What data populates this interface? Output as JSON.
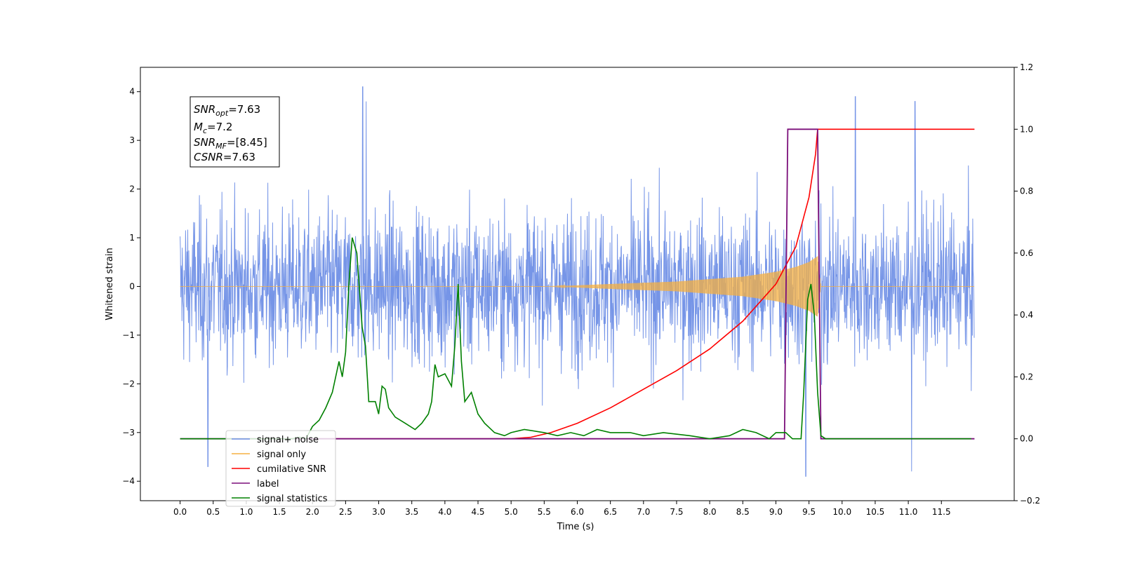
{
  "chart_data": {
    "type": "line",
    "title": "",
    "xlabel": "Time (s)",
    "ylabel": "Whitened strain",
    "ylabel_right": "",
    "xlim": [
      -0.6,
      12.6
    ],
    "ylim": [
      -4.4,
      4.5
    ],
    "ylim_right": [
      -0.2,
      1.2
    ],
    "x_ticks": [
      "0.0",
      "0.5",
      "1.0",
      "1.5",
      "2.0",
      "2.5",
      "3.0",
      "3.5",
      "4.0",
      "4.5",
      "5.0",
      "5.5",
      "6.0",
      "6.5",
      "7.0",
      "7.5",
      "8.0",
      "8.5",
      "9.0",
      "9.5",
      "10.0",
      "10.5",
      "11.0",
      "11.5"
    ],
    "y_ticks": [
      "−4",
      "−3",
      "−2",
      "−1",
      "0",
      "1",
      "2",
      "3",
      "4"
    ],
    "y_ticks_right": [
      "−0.2",
      "0.0",
      "0.2",
      "0.4",
      "0.6",
      "0.8",
      "1.0",
      "1.2"
    ],
    "grid": false,
    "legend_position": "lower-left",
    "annotation": {
      "snr_opt": "=7.63",
      "mc": "=7.2",
      "snr_mf": "=[8.45]",
      "csnr": "=7.63"
    },
    "series": [
      {
        "name": "signal+ noise",
        "axis": "left",
        "color": "#6f8fe6",
        "style": "noise band",
        "x_range": [
          0.0,
          12.0
        ],
        "approx_amplitude": 1.8,
        "notable_peaks": [
          [
            2.76,
            4.1
          ],
          [
            2.81,
            3.8
          ],
          [
            10.2,
            3.9
          ],
          [
            11.1,
            3.8
          ],
          [
            9.45,
            -3.9
          ],
          [
            11.05,
            -3.8
          ],
          [
            0.42,
            -3.7
          ]
        ]
      },
      {
        "name": "signal only",
        "axis": "left",
        "color": "#f5b042",
        "style": "chirp",
        "chirp_start": 5.6,
        "merger_time": 9.63,
        "envelope": [
          [
            5.6,
            0.0
          ],
          [
            6.5,
            0.05
          ],
          [
            7.5,
            0.1
          ],
          [
            8.5,
            0.2
          ],
          [
            9.0,
            0.3
          ],
          [
            9.3,
            0.4
          ],
          [
            9.5,
            0.5
          ],
          [
            9.63,
            0.62
          ],
          [
            9.68,
            0.0
          ]
        ]
      },
      {
        "name": "cumilative SNR",
        "axis": "right",
        "color": "#ff0000",
        "points": [
          [
            2.3,
            0.0
          ],
          [
            5.0,
            0.0
          ],
          [
            5.3,
            0.005
          ],
          [
            5.6,
            0.02
          ],
          [
            6.0,
            0.05
          ],
          [
            6.5,
            0.1
          ],
          [
            7.0,
            0.16
          ],
          [
            7.5,
            0.22
          ],
          [
            8.0,
            0.29
          ],
          [
            8.5,
            0.38
          ],
          [
            9.0,
            0.5
          ],
          [
            9.3,
            0.62
          ],
          [
            9.5,
            0.78
          ],
          [
            9.6,
            0.92
          ],
          [
            9.63,
            1.0
          ],
          [
            12.0,
            1.0
          ]
        ]
      },
      {
        "name": "label",
        "axis": "right",
        "color": "#7b0f7a",
        "points": [
          [
            0.0,
            0.0
          ],
          [
            9.13,
            0.0
          ],
          [
            9.18,
            1.0
          ],
          [
            9.63,
            1.0
          ],
          [
            9.68,
            0.0
          ],
          [
            12.0,
            0.0
          ]
        ]
      },
      {
        "name": "signal statistics",
        "axis": "right",
        "color": "#008000",
        "points": [
          [
            0.0,
            0.0
          ],
          [
            1.7,
            0.0
          ],
          [
            1.8,
            0.005
          ],
          [
            1.9,
            0.0
          ],
          [
            2.0,
            0.04
          ],
          [
            2.1,
            0.06
          ],
          [
            2.2,
            0.1
          ],
          [
            2.3,
            0.15
          ],
          [
            2.4,
            0.25
          ],
          [
            2.45,
            0.2
          ],
          [
            2.5,
            0.28
          ],
          [
            2.55,
            0.5
          ],
          [
            2.6,
            0.65
          ],
          [
            2.67,
            0.6
          ],
          [
            2.75,
            0.36
          ],
          [
            2.8,
            0.3
          ],
          [
            2.85,
            0.12
          ],
          [
            2.95,
            0.12
          ],
          [
            3.0,
            0.08
          ],
          [
            3.05,
            0.17
          ],
          [
            3.1,
            0.16
          ],
          [
            3.15,
            0.1
          ],
          [
            3.25,
            0.07
          ],
          [
            3.4,
            0.05
          ],
          [
            3.55,
            0.03
          ],
          [
            3.65,
            0.05
          ],
          [
            3.75,
            0.08
          ],
          [
            3.8,
            0.12
          ],
          [
            3.85,
            0.24
          ],
          [
            3.9,
            0.2
          ],
          [
            4.0,
            0.21
          ],
          [
            4.1,
            0.17
          ],
          [
            4.15,
            0.3
          ],
          [
            4.2,
            0.5
          ],
          [
            4.25,
            0.25
          ],
          [
            4.3,
            0.12
          ],
          [
            4.4,
            0.15
          ],
          [
            4.5,
            0.08
          ],
          [
            4.6,
            0.05
          ],
          [
            4.75,
            0.02
          ],
          [
            4.9,
            0.01
          ],
          [
            5.0,
            0.02
          ],
          [
            5.2,
            0.03
          ],
          [
            5.5,
            0.02
          ],
          [
            5.7,
            0.01
          ],
          [
            5.9,
            0.02
          ],
          [
            6.1,
            0.01
          ],
          [
            6.3,
            0.03
          ],
          [
            6.5,
            0.02
          ],
          [
            6.8,
            0.02
          ],
          [
            7.0,
            0.01
          ],
          [
            7.3,
            0.02
          ],
          [
            7.7,
            0.01
          ],
          [
            8.0,
            0.0
          ],
          [
            8.3,
            0.01
          ],
          [
            8.5,
            0.03
          ],
          [
            8.7,
            0.02
          ],
          [
            8.9,
            0.0
          ],
          [
            9.0,
            0.02
          ],
          [
            9.15,
            0.02
          ],
          [
            9.25,
            0.0
          ],
          [
            9.38,
            0.0
          ],
          [
            9.42,
            0.15
          ],
          [
            9.48,
            0.45
          ],
          [
            9.53,
            0.5
          ],
          [
            9.58,
            0.4
          ],
          [
            9.63,
            0.15
          ],
          [
            9.68,
            0.01
          ],
          [
            9.75,
            0.0
          ],
          [
            11.95,
            0.0
          ]
        ]
      }
    ]
  }
}
